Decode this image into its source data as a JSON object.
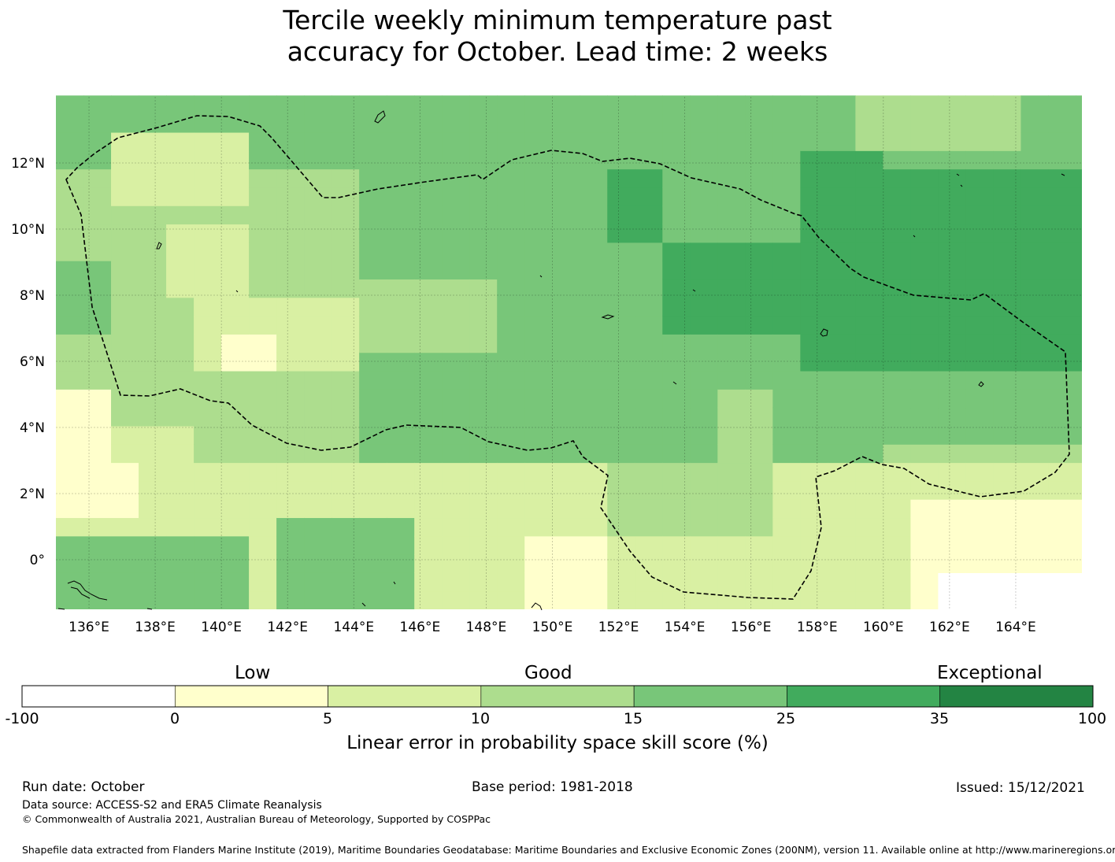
{
  "title": {
    "line1": "Tercile weekly minimum temperature past",
    "line2": "accuracy for October. Lead time: 2 weeks"
  },
  "map": {
    "lon_range": [
      135,
      166
    ],
    "lat_range": [
      -1.5,
      14
    ],
    "lon_ticks": [
      "136°E",
      "138°E",
      "140°E",
      "142°E",
      "144°E",
      "146°E",
      "148°E",
      "150°E",
      "152°E",
      "154°E",
      "156°E",
      "158°E",
      "160°E",
      "162°E",
      "164°E"
    ],
    "lat_ticks": [
      "12°N",
      "10°N",
      "8°N",
      "6°N",
      "4°N",
      "2°N",
      "0°"
    ],
    "region_boundary": "dashed-black",
    "land": "island outlines (Palau, Yap, Chuuk, Pohnpei, Kosrae, Guam, New Guinea coast)"
  },
  "colorbar": {
    "categories": [
      "Low",
      "Good",
      "Exceptional"
    ],
    "ticks": [
      "-100",
      "0",
      "5",
      "10",
      "15",
      "25",
      "35",
      "100"
    ],
    "colors": [
      "#ffffff",
      "#ffffcc",
      "#d9f0a3",
      "#addd8e",
      "#78c679",
      "#41ab5d",
      "#238443"
    ],
    "title": "Linear error in probability space skill score (%)"
  },
  "footer": {
    "run_date": "Run date: October",
    "base_period": "Base period: 1981-2018",
    "issued": "Issued: 15/12/2021",
    "data_source": "Data source: ACCESS-S2 and ERA5 Climate Reanalysis",
    "copyright": "© Commonwealth of Australia 2021, Australian Bureau of Meteorology, Supported by COSPPac",
    "shapefile": "Shapefile data extracted from Flanders Marine Institute (2019), Maritime Boundaries Geodatabase: Maritime Boundaries and Exclusive Economic Zones (200NM), version 11. Available online at http://www.marineregions.org/."
  }
}
